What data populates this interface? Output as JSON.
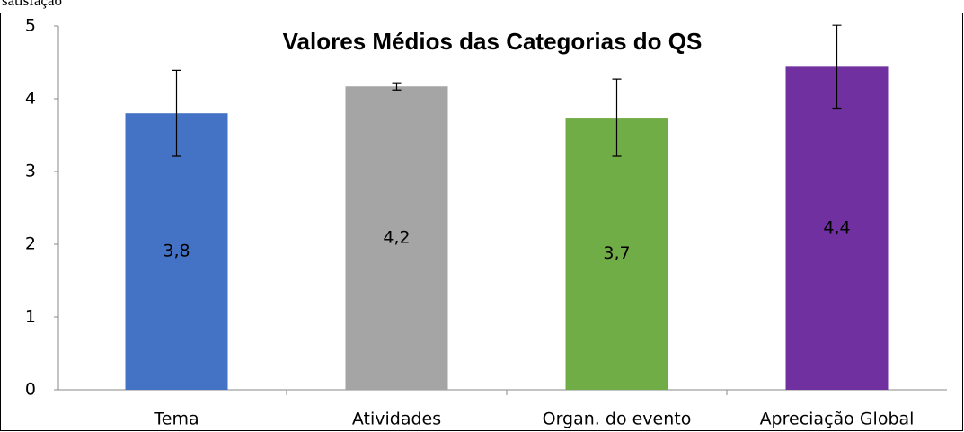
{
  "caption": "satisfação",
  "chart_data": {
    "type": "bar",
    "title": "Valores Médios das Categorias do QS",
    "categories": [
      "Tema",
      "Atividades",
      "Organ. do evento",
      "Apreciação Global"
    ],
    "values": [
      3.8,
      4.17,
      3.74,
      4.44
    ],
    "value_labels": [
      "3,8",
      "4,2",
      "3,7",
      "4,4"
    ],
    "errors": [
      0.59,
      0.05,
      0.53,
      0.57
    ],
    "colors": [
      "#4472c4",
      "#a5a5a5",
      "#70ad47",
      "#7030a0"
    ],
    "ylim": [
      0,
      5
    ],
    "yticks": [
      0,
      1,
      2,
      3,
      4,
      5
    ],
    "grid": false
  }
}
